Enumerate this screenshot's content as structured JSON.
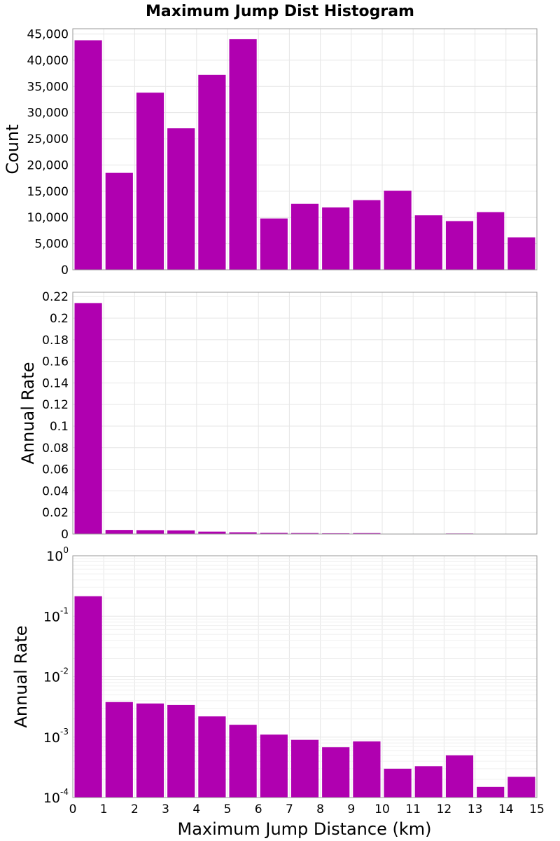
{
  "chart_data": {
    "type": "bar",
    "title": "Maximum Jump Dist Histogram",
    "xlabel": "Maximum Jump Distance (km)",
    "xlim": [
      0,
      15
    ],
    "x_ticks": [
      "0",
      "1",
      "2",
      "3",
      "4",
      "5",
      "6",
      "7",
      "8",
      "9",
      "10",
      "11",
      "12",
      "13",
      "14",
      "15"
    ],
    "bin_centers": [
      0.5,
      1.5,
      2.5,
      3.5,
      4.5,
      5.5,
      6.5,
      7.5,
      8.5,
      9.5,
      10.5,
      11.5,
      12.5,
      13.5,
      14.5
    ],
    "bar_color": "#b000b0",
    "grid": true,
    "panels": [
      {
        "ylabel": "Count",
        "yscale": "linear",
        "ylim": [
          0,
          46000
        ],
        "y_ticks": [
          {
            "value": 0,
            "label": "0"
          },
          {
            "value": 5000,
            "label": "5,000"
          },
          {
            "value": 10000,
            "label": "10,000"
          },
          {
            "value": 15000,
            "label": "15,000"
          },
          {
            "value": 20000,
            "label": "20,000"
          },
          {
            "value": 25000,
            "label": "25,000"
          },
          {
            "value": 30000,
            "label": "30,000"
          },
          {
            "value": 35000,
            "label": "35,000"
          },
          {
            "value": 40000,
            "label": "40,000"
          },
          {
            "value": 45000,
            "label": "45,000"
          }
        ],
        "values": [
          43800,
          18500,
          33800,
          27000,
          37200,
          44000,
          9800,
          12600,
          11900,
          13300,
          15100,
          10400,
          9300,
          11000,
          6200
        ]
      },
      {
        "ylabel": "Annual Rate",
        "yscale": "linear",
        "ylim": [
          0,
          0.224
        ],
        "y_ticks": [
          {
            "value": 0,
            "label": "0"
          },
          {
            "value": 0.02,
            "label": "0.02"
          },
          {
            "value": 0.04,
            "label": "0.04"
          },
          {
            "value": 0.06,
            "label": "0.06"
          },
          {
            "value": 0.08,
            "label": "0.08"
          },
          {
            "value": 0.1,
            "label": "0.1"
          },
          {
            "value": 0.12,
            "label": "0.12"
          },
          {
            "value": 0.14,
            "label": "0.14"
          },
          {
            "value": 0.16,
            "label": "0.16"
          },
          {
            "value": 0.18,
            "label": "0.18"
          },
          {
            "value": 0.2,
            "label": "0.2"
          },
          {
            "value": 0.22,
            "label": "0.22"
          }
        ],
        "values": [
          0.214,
          0.0038,
          0.0036,
          0.0034,
          0.0022,
          0.0016,
          0.0011,
          0.0009,
          0.00068,
          0.00085,
          0.0003,
          0.00033,
          0.0005,
          0.00015,
          0.00022
        ]
      },
      {
        "ylabel": "Annual Rate",
        "yscale": "log",
        "ylim": [
          0.0001,
          1
        ],
        "y_ticks": [
          {
            "value": 1,
            "base": "10",
            "exp": "0"
          },
          {
            "value": 0.1,
            "base": "10",
            "exp": "-1"
          },
          {
            "value": 0.01,
            "base": "10",
            "exp": "-2"
          },
          {
            "value": 0.001,
            "base": "10",
            "exp": "-3"
          },
          {
            "value": 0.0001,
            "base": "10",
            "exp": "-4"
          }
        ],
        "values": [
          0.214,
          0.0038,
          0.0036,
          0.0034,
          0.0022,
          0.0016,
          0.0011,
          0.0009,
          0.00068,
          0.00085,
          0.0003,
          0.00033,
          0.0005,
          0.00015,
          0.00022
        ]
      }
    ]
  }
}
